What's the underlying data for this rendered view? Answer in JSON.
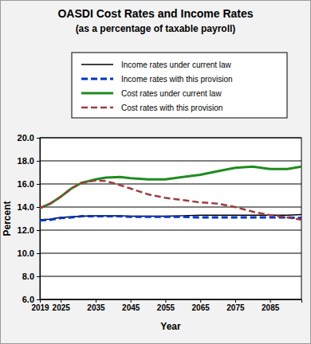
{
  "chart_data": {
    "type": "line",
    "title": "OASDI Cost Rates and Income Rates",
    "subtitle": "(as a percentage of taxable payroll)",
    "x_label": "Year",
    "y_label": "Percent",
    "x": [
      2019,
      2022,
      2025,
      2028,
      2031,
      2035,
      2038,
      2042,
      2045,
      2050,
      2055,
      2060,
      2065,
      2070,
      2075,
      2080,
      2085,
      2090,
      2094
    ],
    "series": [
      {
        "name": "Income rates under current law",
        "color": "#000000",
        "line_style": "solid",
        "values": [
          12.9,
          12.95,
          13.1,
          13.15,
          13.2,
          13.25,
          13.25,
          13.25,
          13.2,
          13.2,
          13.2,
          13.25,
          13.3,
          13.3,
          13.3,
          13.3,
          13.3,
          13.3,
          13.35
        ]
      },
      {
        "name": "Income rates with this provision",
        "color": "#0033cc",
        "line_style": "dashed",
        "values": [
          12.85,
          12.9,
          13.05,
          13.1,
          13.2,
          13.2,
          13.2,
          13.2,
          13.15,
          13.15,
          13.15,
          13.15,
          13.1,
          13.1,
          13.1,
          13.1,
          13.1,
          13.1,
          13.05
        ]
      },
      {
        "name": "Cost rates under current law",
        "color": "#1e8c1e",
        "line_style": "solid",
        "values": [
          13.9,
          14.3,
          14.9,
          15.6,
          16.1,
          16.4,
          16.55,
          16.6,
          16.5,
          16.4,
          16.4,
          16.6,
          16.8,
          17.1,
          17.4,
          17.5,
          17.3,
          17.3,
          17.5
        ]
      },
      {
        "name": "Cost rates with this provision",
        "color": "#a03c3c",
        "line_style": "dashed",
        "values": [
          13.9,
          14.3,
          14.9,
          15.6,
          16.1,
          16.3,
          16.25,
          15.9,
          15.6,
          15.1,
          14.8,
          14.6,
          14.4,
          14.3,
          14.0,
          13.6,
          13.3,
          13.1,
          12.9
        ]
      }
    ],
    "xlim": [
      2019,
      2094
    ],
    "xticks": [
      2019,
      2025,
      2035,
      2045,
      2055,
      2065,
      2075,
      2085
    ],
    "ylim": [
      6,
      20
    ],
    "yticks": [
      {
        "value": 6,
        "label": "6.0"
      },
      {
        "value": 8,
        "label": "8.0"
      },
      {
        "value": 10,
        "label": "10.0"
      },
      {
        "value": 12,
        "label": "12.0"
      },
      {
        "value": 14,
        "label": "14.0"
      },
      {
        "value": 16,
        "label": "16.0"
      },
      {
        "value": 18,
        "label": "18.0"
      },
      {
        "value": 20,
        "label": "20.0"
      }
    ],
    "grid": true,
    "legend": "top"
  }
}
